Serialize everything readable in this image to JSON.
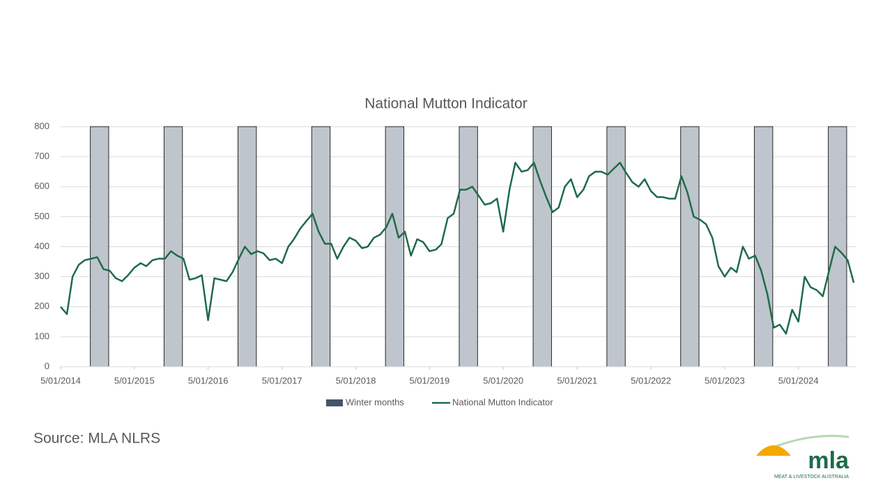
{
  "chart_data": {
    "type": "line",
    "title": "National Mutton Indicator",
    "source": "Source: MLA NLRS",
    "logo": {
      "text": "mla",
      "subtitle": "MEAT & LIVESTOCK AUSTRALIA"
    },
    "xlim": [
      "2014-01-05",
      "2024-10-15"
    ],
    "ylim": [
      0,
      800
    ],
    "yticks": [
      0,
      100,
      200,
      300,
      400,
      500,
      600,
      700,
      800
    ],
    "xticks": [
      {
        "value": "2014-01-05",
        "label": "5/01/2014"
      },
      {
        "value": "2015-01-05",
        "label": "5/01/2015"
      },
      {
        "value": "2016-01-05",
        "label": "5/01/2016"
      },
      {
        "value": "2017-01-05",
        "label": "5/01/2017"
      },
      {
        "value": "2018-01-05",
        "label": "5/01/2018"
      },
      {
        "value": "2019-01-05",
        "label": "5/01/2019"
      },
      {
        "value": "2020-01-05",
        "label": "5/01/2020"
      },
      {
        "value": "2021-01-05",
        "label": "5/01/2021"
      },
      {
        "value": "2022-01-05",
        "label": "5/01/2022"
      },
      {
        "value": "2023-01-05",
        "label": "5/01/2023"
      },
      {
        "value": "2024-01-05",
        "label": "5/01/2024"
      }
    ],
    "grid": true,
    "legend": "bottom",
    "bars": {
      "name": "Winter months",
      "color": "#bfc5cc",
      "start": [
        "2014-06-01",
        "2015-06-01",
        "2016-06-01",
        "2017-06-01",
        "2018-06-01",
        "2019-06-01",
        "2020-06-01",
        "2021-06-01",
        "2022-06-01",
        "2023-06-01",
        "2024-06-01"
      ],
      "end": [
        "2014-08-31",
        "2015-08-31",
        "2016-08-31",
        "2017-08-31",
        "2018-08-31",
        "2019-08-31",
        "2020-08-31",
        "2021-08-31",
        "2022-08-31",
        "2023-08-31",
        "2024-08-31"
      ],
      "values": [
        800,
        800,
        800,
        800,
        800,
        800,
        800,
        800,
        800,
        800,
        800
      ]
    },
    "series": [
      {
        "name": "National Mutton Indicator",
        "color": "#1e6b4a",
        "x": [
          "2014-01-05",
          "2014-02-05",
          "2014-03-05",
          "2014-04-05",
          "2014-05-05",
          "2014-06-05",
          "2014-07-05",
          "2014-08-05",
          "2014-09-05",
          "2014-10-05",
          "2014-11-05",
          "2014-12-05",
          "2015-01-05",
          "2015-02-05",
          "2015-03-05",
          "2015-04-05",
          "2015-05-05",
          "2015-06-05",
          "2015-07-05",
          "2015-08-05",
          "2015-09-05",
          "2015-10-05",
          "2015-11-05",
          "2015-12-05",
          "2016-01-05",
          "2016-02-05",
          "2016-03-05",
          "2016-04-05",
          "2016-05-05",
          "2016-06-05",
          "2016-07-05",
          "2016-08-05",
          "2016-09-05",
          "2016-10-05",
          "2016-11-05",
          "2016-12-05",
          "2017-01-05",
          "2017-02-05",
          "2017-03-05",
          "2017-04-05",
          "2017-05-05",
          "2017-06-05",
          "2017-07-05",
          "2017-08-05",
          "2017-09-05",
          "2017-10-05",
          "2017-11-05",
          "2017-12-05",
          "2018-01-05",
          "2018-02-05",
          "2018-03-05",
          "2018-04-05",
          "2018-05-05",
          "2018-06-05",
          "2018-07-05",
          "2018-08-05",
          "2018-09-05",
          "2018-10-05",
          "2018-11-05",
          "2018-12-05",
          "2019-01-05",
          "2019-02-05",
          "2019-03-05",
          "2019-04-05",
          "2019-05-05",
          "2019-06-05",
          "2019-07-05",
          "2019-08-05",
          "2019-09-05",
          "2019-10-05",
          "2019-11-05",
          "2019-12-05",
          "2020-01-05",
          "2020-02-05",
          "2020-03-05",
          "2020-04-05",
          "2020-05-05",
          "2020-06-05",
          "2020-07-05",
          "2020-08-05",
          "2020-09-05",
          "2020-10-05",
          "2020-11-05",
          "2020-12-05",
          "2021-01-05",
          "2021-02-05",
          "2021-03-05",
          "2021-04-05",
          "2021-05-05",
          "2021-06-05",
          "2021-07-05",
          "2021-08-05",
          "2021-09-05",
          "2021-10-05",
          "2021-11-05",
          "2021-12-05",
          "2022-01-05",
          "2022-02-05",
          "2022-03-05",
          "2022-04-05",
          "2022-05-05",
          "2022-06-05",
          "2022-07-05",
          "2022-08-05",
          "2022-09-05",
          "2022-10-05",
          "2022-11-05",
          "2022-12-05",
          "2023-01-05",
          "2023-02-05",
          "2023-03-05",
          "2023-04-05",
          "2023-05-05",
          "2023-06-05",
          "2023-07-05",
          "2023-08-05",
          "2023-09-05",
          "2023-10-05",
          "2023-11-05",
          "2023-12-05",
          "2024-01-05",
          "2024-02-05",
          "2024-03-05",
          "2024-04-05",
          "2024-05-05",
          "2024-06-05",
          "2024-07-05",
          "2024-08-05",
          "2024-09-05",
          "2024-10-05"
        ],
        "values": [
          200,
          175,
          300,
          340,
          355,
          360,
          365,
          325,
          320,
          295,
          285,
          305,
          330,
          345,
          335,
          355,
          360,
          360,
          385,
          370,
          360,
          290,
          295,
          305,
          155,
          295,
          290,
          285,
          315,
          360,
          400,
          375,
          385,
          378,
          355,
          360,
          345,
          400,
          425,
          460,
          485,
          510,
          450,
          410,
          410,
          360,
          400,
          430,
          420,
          395,
          400,
          430,
          440,
          465,
          510,
          430,
          450,
          370,
          425,
          415,
          385,
          390,
          408,
          495,
          510,
          590,
          590,
          600,
          570,
          540,
          545,
          560,
          450,
          590,
          680,
          650,
          655,
          680,
          620,
          565,
          515,
          530,
          600,
          625,
          565,
          590,
          635,
          650,
          650,
          640,
          660,
          680,
          645,
          615,
          600,
          625,
          585,
          565,
          565,
          560,
          560,
          635,
          580,
          500,
          490,
          475,
          430,
          335,
          300,
          330,
          315,
          400,
          360,
          370,
          320,
          240,
          130,
          140,
          110,
          190,
          150,
          300,
          265,
          255,
          235,
          320,
          400,
          380,
          355,
          280
        ]
      }
    ]
  }
}
